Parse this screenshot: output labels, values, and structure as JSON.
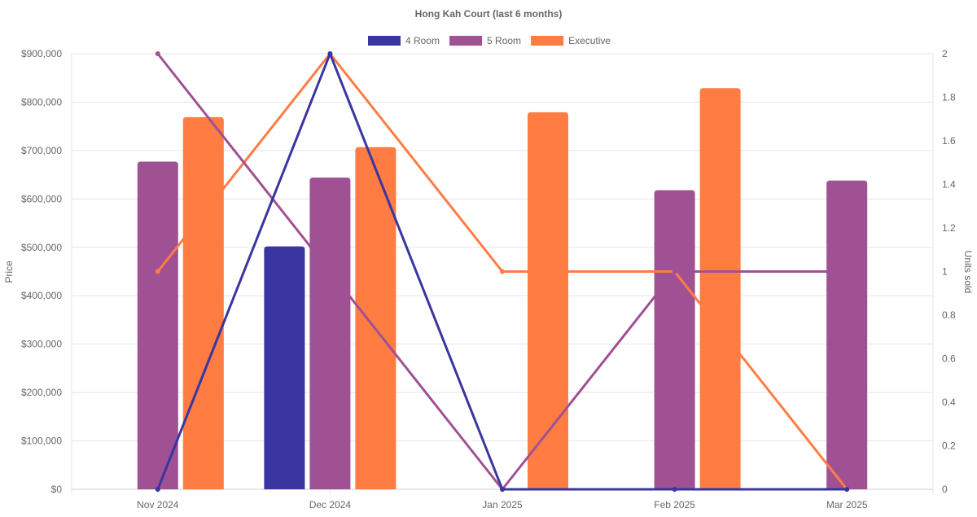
{
  "chart_data": {
    "type": "bar",
    "title": "Hong Kah Court (last 6 months)",
    "categories": [
      "Nov 2024",
      "Dec 2024",
      "Jan 2025",
      "Feb 2025",
      "Mar 2025"
    ],
    "ylabel": "Price",
    "y2label": "Units sold",
    "ylim": [
      0,
      900000
    ],
    "y2lim": [
      0,
      2
    ],
    "yticks": [
      "$0",
      "$100,000",
      "$200,000",
      "$300,000",
      "$400,000",
      "$500,000",
      "$600,000",
      "$700,000",
      "$800,000",
      "$900,000"
    ],
    "y2ticks": [
      "0",
      "0.2",
      "0.4",
      "0.6",
      "0.8",
      "1",
      "1.2",
      "1.4",
      "1.6",
      "1.8",
      "2"
    ],
    "grid": true,
    "legend_position": "top",
    "series": [
      {
        "name": "4 Room",
        "color": "#3a35a0",
        "price": [
          null,
          502000,
          null,
          null,
          null
        ],
        "units": [
          0,
          2,
          0,
          0,
          0
        ]
      },
      {
        "name": "5 Room",
        "color": "#a05193",
        "price": [
          677000,
          644000,
          null,
          618000,
          638000
        ],
        "units": [
          2,
          1,
          0,
          1,
          1
        ]
      },
      {
        "name": "Executive",
        "color": "#ff7c43",
        "price": [
          769000,
          707000,
          779000,
          829000,
          null
        ],
        "units": [
          1,
          2,
          1,
          1,
          0
        ]
      }
    ]
  }
}
